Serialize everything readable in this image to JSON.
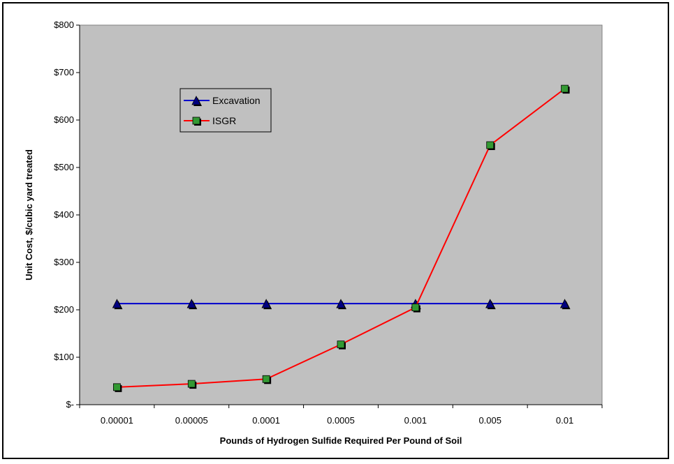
{
  "chart_data": {
    "type": "line",
    "categories": [
      "0.00001",
      "0.00005",
      "0.0001",
      "0.0005",
      "0.001",
      "0.005",
      "0.01"
    ],
    "xlabel": "Pounds of Hydrogen Sulfide Required Per Pound of Soil",
    "ylabel": "Unit Cost,  $/cubic yard treated",
    "ylim": [
      0,
      800
    ],
    "ytick_values": [
      0,
      100,
      200,
      300,
      400,
      500,
      600,
      700,
      800
    ],
    "ytick_labels": [
      "$-",
      "$100",
      "$200",
      "$300",
      "$400",
      "$500",
      "$600",
      "$700",
      "$800"
    ],
    "grid": false,
    "plot_background": "#c0c0c0",
    "legend_position": "top-left",
    "series": [
      {
        "name": "Excavation",
        "marker": "triangle",
        "color": "#0000cc",
        "marker_color": "#000080",
        "values": [
          213,
          213,
          213,
          213,
          213,
          213,
          213
        ]
      },
      {
        "name": "ISGR",
        "marker": "square",
        "color": "#ff0000",
        "marker_color": "#339933",
        "values": [
          37,
          44,
          54,
          127,
          205,
          547,
          666
        ]
      }
    ]
  }
}
